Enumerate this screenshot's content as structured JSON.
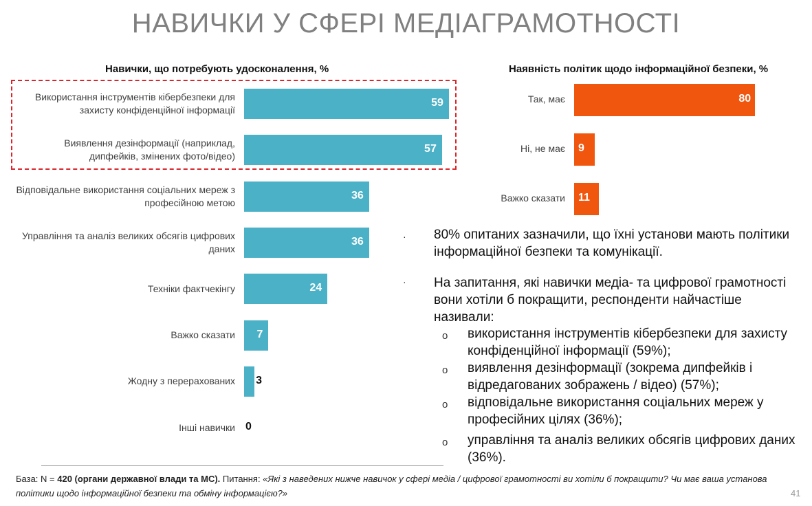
{
  "title": "НАВИЧКИ У СФЕРІ МЕДІАГРАМОТНОСТІ",
  "chart_data": [
    {
      "type": "bar",
      "orientation": "horizontal",
      "title": "Навички, що потребують удосконалення, %",
      "categories": [
        "Використання інструментів кібербезпеки для захисту конфіденційної інформації",
        "Виявлення дезінформації (наприклад, дипфейків, змінених фото/відео)",
        "Відповідальне використання соціальних мереж з професійною метою",
        "Управління та аналіз великих обсягів цифрових даних",
        "Техніки фактчекінгу",
        "Важко сказати",
        "Жодну з перерахованих",
        "Інші навички"
      ],
      "values": [
        59,
        57,
        36,
        36,
        24,
        7,
        3,
        0
      ],
      "color": "#4bb1c6",
      "highlighted": [
        0,
        1
      ]
    },
    {
      "type": "bar",
      "orientation": "horizontal",
      "title": "Наявність політик щодо інформаційної безпеки, %",
      "categories": [
        "Так, має",
        "Ні, не має",
        "Важко сказати"
      ],
      "values": [
        80,
        9,
        11
      ],
      "color": "#f0560e"
    }
  ],
  "text": {
    "bullet1": "80% опитаних зазначили, що їхні установи мають політики інформаційної безпеки та комунікації.",
    "bullet2": "На запитання, які навички медіа- та цифрової грамотності вони хотіли б покращити, респонденти найчастіше називали:",
    "sub": [
      "використання інструментів кібербезпеки для захисту конфіденційної інформації (59%);",
      "виявлення дезінформації (зокрема дипфейків і відредагованих зображень / відео) (57%);",
      "відповідальне використання соціальних мереж у професійних цілях (36%);",
      "управління та аналіз великих обсягів цифрових даних (36%)."
    ]
  },
  "footer": {
    "base_label": "База: N = ",
    "base_value": "420 (органи державної влади та МС).",
    "question_label": " Питання: ",
    "question": "«Які з наведених нижче навичок у сфері медіа / цифрової грамотності ви хотіли б покращити? Чи має ваша установа політики щодо інформаційної безпеки та обміну інформацією?»"
  },
  "page_number": "41"
}
